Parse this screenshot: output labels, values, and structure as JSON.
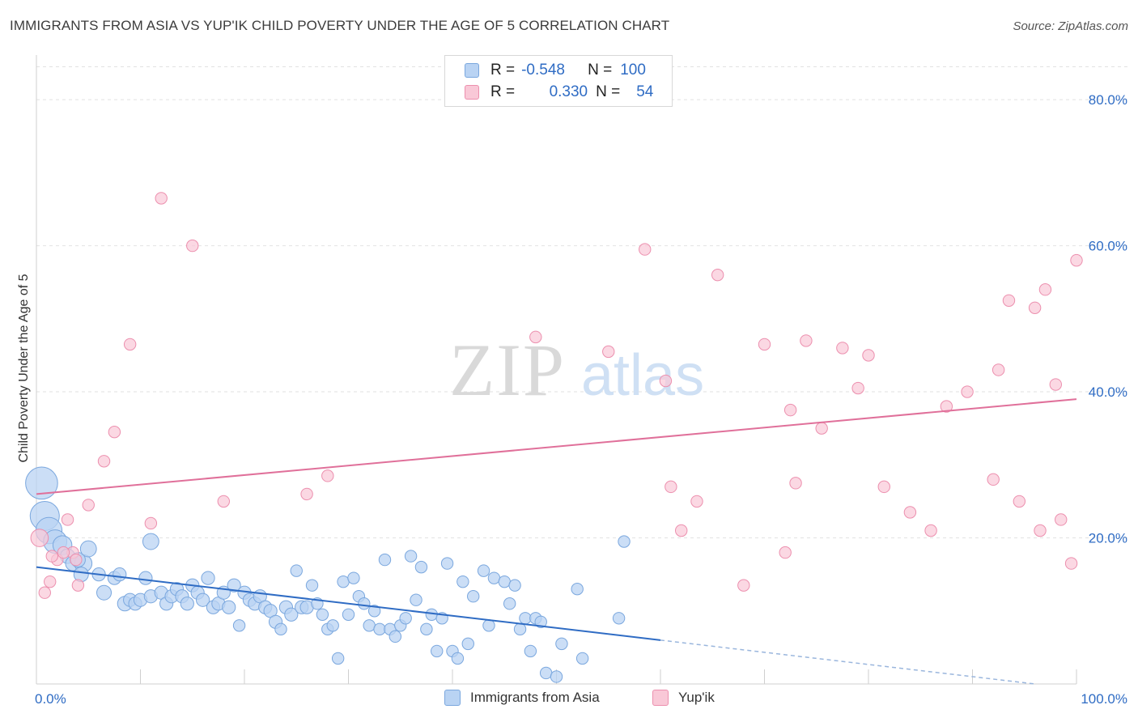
{
  "title": "IMMIGRANTS FROM ASIA VS YUP'IK CHILD POVERTY UNDER THE AGE OF 5 CORRELATION CHART",
  "source": "Source: ZipAtlas.com",
  "watermark": {
    "zip": "ZIP",
    "atlas": "atlas"
  },
  "legend": {
    "r_label": "R =",
    "n_label": "N =",
    "rows": [
      {
        "r": "-0.548",
        "n": "100"
      },
      {
        "r": "0.330",
        "n": "54"
      }
    ]
  },
  "chart_data": {
    "type": "scatter",
    "title": "IMMIGRANTS FROM ASIA VS YUP'IK CHILD POVERTY UNDER THE AGE OF 5 CORRELATION CHART",
    "xlabel": "",
    "ylabel": "Child Poverty Under the Age of 5",
    "xlim": [
      0,
      100
    ],
    "ylim": [
      0,
      85
    ],
    "x_tick_labels": [
      "0.0%",
      "100.0%"
    ],
    "y_ticks": [
      20,
      40,
      60,
      80
    ],
    "y_tick_labels": [
      "20.0%",
      "40.0%",
      "60.0%",
      "80.0%"
    ],
    "grid": true,
    "legend_position": "top-center",
    "colors": {
      "blue": "#7aa7de",
      "blue_fill": "#b9d3f3",
      "blue_line": "#2f6cc4",
      "pink": "#ec8fae",
      "pink_fill": "#f9c8d7",
      "pink_line": "#e0709a",
      "axis_label": "#2f6cc4"
    },
    "series": [
      {
        "name": "Immigrants from Asia",
        "color": "#7aa7de",
        "trend": {
          "x0": 0,
          "y0": 16.0,
          "x1": 60,
          "y1": 6.0,
          "dash_to_x": 96,
          "dash_to_y": 0
        },
        "points": [
          [
            0.5,
            27.5,
            2.2
          ],
          [
            0.8,
            23.0,
            2.0
          ],
          [
            1.2,
            21.0,
            1.8
          ],
          [
            1.8,
            19.5,
            1.6
          ],
          [
            2.5,
            19.0,
            1.3
          ],
          [
            3.0,
            17.5,
            1.0
          ],
          [
            3.5,
            16.5,
            1.0
          ],
          [
            4.5,
            16.5,
            1.2
          ],
          [
            4.0,
            17.0,
            1.0
          ],
          [
            5.0,
            18.5,
            1.1
          ],
          [
            4.3,
            15.0,
            1.0
          ],
          [
            6.5,
            12.5,
            1.0
          ],
          [
            6.0,
            15.0,
            0.9
          ],
          [
            7.5,
            14.5,
            0.9
          ],
          [
            8.0,
            15.0,
            0.9
          ],
          [
            8.5,
            11.0,
            1.0
          ],
          [
            9.0,
            11.5,
            0.9
          ],
          [
            9.5,
            11.0,
            0.9
          ],
          [
            10.0,
            11.5,
            0.9
          ],
          [
            11.0,
            12.0,
            0.9
          ],
          [
            10.5,
            14.5,
            0.9
          ],
          [
            11.0,
            19.5,
            1.1
          ],
          [
            12.0,
            12.5,
            0.9
          ],
          [
            12.5,
            11.0,
            0.9
          ],
          [
            13.0,
            12.0,
            0.9
          ],
          [
            13.5,
            13.0,
            0.9
          ],
          [
            14.0,
            12.0,
            0.9
          ],
          [
            14.5,
            11.0,
            0.9
          ],
          [
            15.0,
            13.5,
            0.9
          ],
          [
            15.5,
            12.5,
            0.9
          ],
          [
            16.0,
            11.5,
            0.9
          ],
          [
            16.5,
            14.5,
            0.9
          ],
          [
            17.0,
            10.5,
            0.9
          ],
          [
            17.5,
            11.0,
            0.9
          ],
          [
            18.0,
            12.5,
            0.9
          ],
          [
            18.5,
            10.5,
            0.9
          ],
          [
            19.0,
            13.5,
            0.9
          ],
          [
            19.5,
            8.0,
            0.8
          ],
          [
            20.0,
            12.5,
            0.9
          ],
          [
            20.5,
            11.5,
            0.9
          ],
          [
            21.0,
            11.0,
            0.9
          ],
          [
            21.5,
            12.0,
            0.9
          ],
          [
            22.0,
            10.5,
            0.9
          ],
          [
            22.5,
            10.0,
            0.9
          ],
          [
            23.0,
            8.5,
            0.9
          ],
          [
            23.5,
            7.5,
            0.8
          ],
          [
            24.0,
            10.5,
            0.9
          ],
          [
            24.5,
            9.5,
            0.9
          ],
          [
            25.0,
            15.5,
            0.8
          ],
          [
            25.5,
            10.5,
            0.9
          ],
          [
            26.0,
            10.5,
            0.9
          ],
          [
            26.5,
            13.5,
            0.8
          ],
          [
            27.0,
            11.0,
            0.8
          ],
          [
            27.5,
            9.5,
            0.8
          ],
          [
            28.0,
            7.5,
            0.8
          ],
          [
            28.5,
            8.0,
            0.8
          ],
          [
            29.0,
            3.5,
            0.8
          ],
          [
            29.5,
            14.0,
            0.8
          ],
          [
            30.0,
            9.5,
            0.8
          ],
          [
            30.5,
            14.5,
            0.8
          ],
          [
            31.0,
            12.0,
            0.8
          ],
          [
            31.5,
            11.0,
            0.8
          ],
          [
            32.0,
            8.0,
            0.8
          ],
          [
            32.5,
            10.0,
            0.8
          ],
          [
            33.0,
            7.5,
            0.8
          ],
          [
            33.5,
            17.0,
            0.8
          ],
          [
            34.0,
            7.5,
            0.8
          ],
          [
            34.5,
            6.5,
            0.8
          ],
          [
            35.0,
            8.0,
            0.8
          ],
          [
            35.5,
            9.0,
            0.8
          ],
          [
            36.0,
            17.5,
            0.8
          ],
          [
            36.5,
            11.5,
            0.8
          ],
          [
            37.0,
            16.0,
            0.8
          ],
          [
            37.5,
            7.5,
            0.8
          ],
          [
            38.0,
            9.5,
            0.8
          ],
          [
            38.5,
            4.5,
            0.8
          ],
          [
            39.0,
            9.0,
            0.8
          ],
          [
            39.5,
            16.5,
            0.8
          ],
          [
            40.0,
            4.5,
            0.8
          ],
          [
            40.5,
            3.5,
            0.8
          ],
          [
            41.0,
            14.0,
            0.8
          ],
          [
            41.5,
            5.5,
            0.8
          ],
          [
            42.0,
            12.0,
            0.8
          ],
          [
            43.0,
            15.5,
            0.8
          ],
          [
            43.5,
            8.0,
            0.8
          ],
          [
            44.0,
            14.5,
            0.8
          ],
          [
            45.0,
            14.0,
            0.8
          ],
          [
            45.5,
            11.0,
            0.8
          ],
          [
            46.0,
            13.5,
            0.8
          ],
          [
            46.5,
            7.5,
            0.8
          ],
          [
            47.0,
            9.0,
            0.8
          ],
          [
            47.5,
            4.5,
            0.8
          ],
          [
            48.0,
            9.0,
            0.8
          ],
          [
            48.5,
            8.5,
            0.8
          ],
          [
            49.0,
            1.5,
            0.8
          ],
          [
            50.0,
            1.0,
            0.8
          ],
          [
            50.5,
            5.5,
            0.8
          ],
          [
            52.0,
            13.0,
            0.8
          ],
          [
            52.5,
            3.5,
            0.8
          ],
          [
            56.5,
            19.5,
            0.8
          ],
          [
            56.0,
            9.0,
            0.8
          ]
        ]
      },
      {
        "name": "Yup'ik",
        "color": "#ec8fae",
        "trend": {
          "x0": 0,
          "y0": 26.0,
          "x1": 100,
          "y1": 39.0
        },
        "points": [
          [
            0.3,
            20.0,
            1.2
          ],
          [
            0.8,
            12.5,
            0.8
          ],
          [
            1.3,
            14.0,
            0.8
          ],
          [
            2.0,
            17.0,
            0.8
          ],
          [
            3.0,
            22.5,
            0.8
          ],
          [
            3.5,
            18.0,
            0.8
          ],
          [
            4.0,
            13.5,
            0.8
          ],
          [
            5.0,
            24.5,
            0.8
          ],
          [
            6.5,
            30.5,
            0.8
          ],
          [
            7.5,
            34.5,
            0.8
          ],
          [
            9.0,
            46.5,
            0.8
          ],
          [
            11.0,
            22.0,
            0.8
          ],
          [
            12.0,
            66.5,
            0.8
          ],
          [
            15.0,
            60.0,
            0.8
          ],
          [
            18.0,
            25.0,
            0.8
          ],
          [
            26.0,
            26.0,
            0.8
          ],
          [
            28.0,
            28.5,
            0.8
          ],
          [
            48.0,
            47.5,
            0.8
          ],
          [
            55.0,
            45.5,
            0.8
          ],
          [
            58.5,
            59.5,
            0.8
          ],
          [
            60.5,
            41.5,
            0.8
          ],
          [
            61.0,
            27.0,
            0.8
          ],
          [
            62.0,
            21.0,
            0.8
          ],
          [
            63.5,
            25.0,
            0.8
          ],
          [
            65.5,
            56.0,
            0.8
          ],
          [
            68.0,
            13.5,
            0.8
          ],
          [
            70.0,
            46.5,
            0.8
          ],
          [
            72.5,
            37.5,
            0.8
          ],
          [
            72.0,
            18.0,
            0.8
          ],
          [
            73.0,
            27.5,
            0.8
          ],
          [
            74.0,
            47.0,
            0.8
          ],
          [
            75.5,
            35.0,
            0.8
          ],
          [
            77.5,
            46.0,
            0.8
          ],
          [
            79.0,
            40.5,
            0.8
          ],
          [
            80.0,
            45.0,
            0.8
          ],
          [
            81.5,
            27.0,
            0.8
          ],
          [
            84.0,
            23.5,
            0.8
          ],
          [
            86.0,
            21.0,
            0.8
          ],
          [
            87.5,
            38.0,
            0.8
          ],
          [
            89.5,
            40.0,
            0.8
          ],
          [
            92.0,
            28.0,
            0.8
          ],
          [
            92.5,
            43.0,
            0.8
          ],
          [
            93.5,
            52.5,
            0.8
          ],
          [
            94.5,
            25.0,
            0.8
          ],
          [
            96.0,
            51.5,
            0.8
          ],
          [
            96.5,
            21.0,
            0.8
          ],
          [
            97.0,
            54.0,
            0.8
          ],
          [
            98.0,
            41.0,
            0.8
          ],
          [
            98.5,
            22.5,
            0.8
          ],
          [
            99.5,
            16.5,
            0.8
          ],
          [
            100.0,
            58.0,
            0.8
          ],
          [
            1.5,
            17.5,
            0.8
          ],
          [
            3.8,
            17.0,
            0.8
          ],
          [
            2.6,
            18.0,
            0.8
          ]
        ]
      }
    ]
  }
}
